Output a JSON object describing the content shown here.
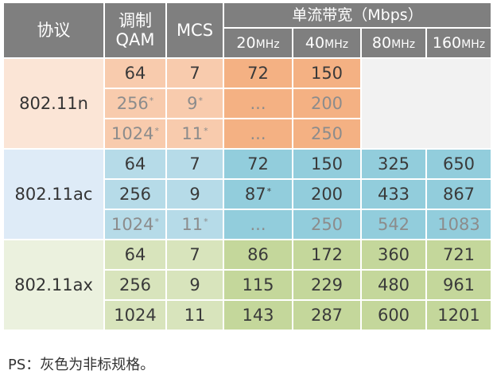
{
  "header": {
    "protocol": "协议",
    "modulation_line1": "调制",
    "modulation_line2": "QAM",
    "mcs": "MCS",
    "bandwidth": "单流带宽（Mbps）",
    "widths": [
      {
        "num": "20",
        "unit": "MHz"
      },
      {
        "num": "40",
        "unit": "MHz"
      },
      {
        "num": "80",
        "unit": "MHz"
      },
      {
        "num": "160",
        "unit": "MHz"
      }
    ]
  },
  "groups": [
    {
      "protocol": "802.11n",
      "rows": [
        {
          "qam": "64",
          "qam_gray": false,
          "qam_star": false,
          "mcs": "7",
          "mcs_gray": false,
          "mcs_star": false,
          "rates": [
            {
              "v": "72",
              "gray": false,
              "star": false
            },
            {
              "v": "150",
              "gray": false,
              "star": false
            }
          ]
        },
        {
          "qam": "256",
          "qam_gray": true,
          "qam_star": true,
          "mcs": "9",
          "mcs_gray": true,
          "mcs_star": true,
          "rates": [
            {
              "v": "...",
              "gray": true,
              "star": false
            },
            {
              "v": "200",
              "gray": true,
              "star": false
            }
          ]
        },
        {
          "qam": "1024",
          "qam_gray": true,
          "qam_star": true,
          "mcs": "11",
          "mcs_gray": true,
          "mcs_star": true,
          "rates": [
            {
              "v": "...",
              "gray": true,
              "star": false
            },
            {
              "v": "250",
              "gray": true,
              "star": false
            }
          ]
        }
      ]
    },
    {
      "protocol": "802.11ac",
      "rows": [
        {
          "qam": "64",
          "qam_gray": false,
          "qam_star": false,
          "mcs": "7",
          "mcs_gray": false,
          "mcs_star": false,
          "rates": [
            {
              "v": "72",
              "gray": false,
              "star": false
            },
            {
              "v": "150",
              "gray": false,
              "star": false
            },
            {
              "v": "325",
              "gray": false,
              "star": false
            },
            {
              "v": "650",
              "gray": false,
              "star": false
            }
          ]
        },
        {
          "qam": "256",
          "qam_gray": false,
          "qam_star": false,
          "mcs": "9",
          "mcs_gray": false,
          "mcs_star": false,
          "rates": [
            {
              "v": "87",
              "gray": false,
              "star": true
            },
            {
              "v": "200",
              "gray": false,
              "star": false
            },
            {
              "v": "433",
              "gray": false,
              "star": false
            },
            {
              "v": "867",
              "gray": false,
              "star": false
            }
          ]
        },
        {
          "qam": "1024",
          "qam_gray": true,
          "qam_star": true,
          "mcs": "11",
          "mcs_gray": true,
          "mcs_star": true,
          "rates": [
            {
              "v": "...",
              "gray": true,
              "star": false
            },
            {
              "v": "250",
              "gray": true,
              "star": false
            },
            {
              "v": "542",
              "gray": true,
              "star": false
            },
            {
              "v": "1083",
              "gray": true,
              "star": false
            }
          ]
        }
      ]
    },
    {
      "protocol": "802.11ax",
      "rows": [
        {
          "qam": "64",
          "qam_gray": false,
          "qam_star": false,
          "mcs": "7",
          "mcs_gray": false,
          "mcs_star": false,
          "rates": [
            {
              "v": "86",
              "gray": false,
              "star": false
            },
            {
              "v": "172",
              "gray": false,
              "star": false
            },
            {
              "v": "360",
              "gray": false,
              "star": false
            },
            {
              "v": "721",
              "gray": false,
              "star": false
            }
          ]
        },
        {
          "qam": "256",
          "qam_gray": false,
          "qam_star": false,
          "mcs": "9",
          "mcs_gray": false,
          "mcs_star": false,
          "rates": [
            {
              "v": "115",
              "gray": false,
              "star": false
            },
            {
              "v": "229",
              "gray": false,
              "star": false
            },
            {
              "v": "480",
              "gray": false,
              "star": false
            },
            {
              "v": "961",
              "gray": false,
              "star": false
            }
          ]
        },
        {
          "qam": "1024",
          "qam_gray": false,
          "qam_star": false,
          "mcs": "11",
          "mcs_gray": false,
          "mcs_star": false,
          "rates": [
            {
              "v": "143",
              "gray": false,
              "star": false
            },
            {
              "v": "287",
              "gray": false,
              "star": false
            },
            {
              "v": "600",
              "gray": false,
              "star": false
            },
            {
              "v": "1201",
              "gray": false,
              "star": false
            }
          ]
        }
      ]
    }
  ],
  "star_mark": "*",
  "footnote": "PS：灰色为非标规格。",
  "colors": {
    "header": "#7f7f7f",
    "gray_text": "#8c8c8c",
    "n_light": "#fbe5d6",
    "n_mid": "#f8cbad",
    "n_dark": "#f4b183",
    "ac_light": "#deebf7",
    "ac_mid": "#b6dbe8",
    "ac_dark": "#92cddc",
    "ax_light": "#ebf1de",
    "ax_mid": "#d8e4bc",
    "ax_dark": "#c4d79b",
    "empty": "#f2f2f2"
  }
}
